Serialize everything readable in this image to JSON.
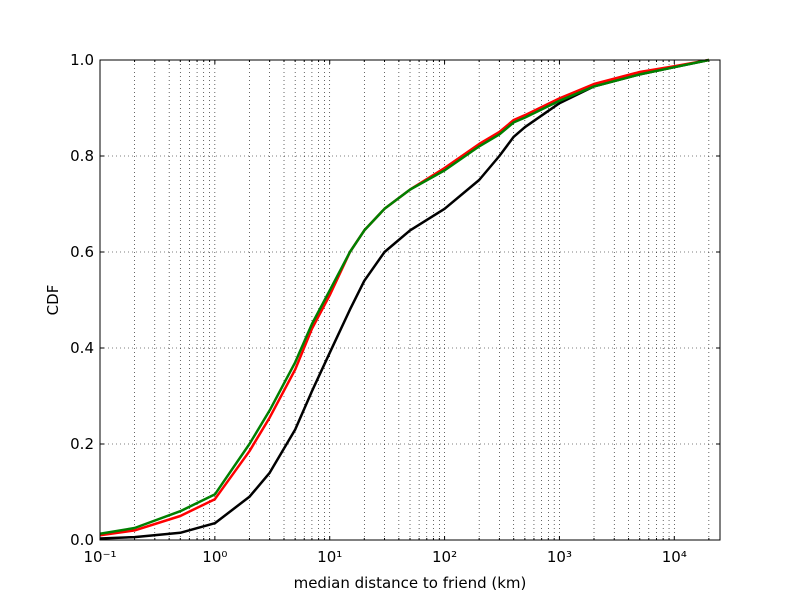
{
  "chart_data": {
    "type": "line",
    "x_label": "median distance to friend (km)",
    "y_label": "CDF",
    "x_scale": "log",
    "grid": true,
    "minor_grid": true,
    "x": [
      0.1,
      0.2,
      0.5,
      1,
      2,
      3,
      5,
      7,
      10,
      15,
      20,
      30,
      50,
      100,
      200,
      300,
      400,
      500,
      1000,
      2000,
      5000,
      10000,
      20000
    ],
    "series": [
      {
        "color": "#000000",
        "values": [
          0.003,
          0.006,
          0.015,
          0.035,
          0.09,
          0.14,
          0.23,
          0.31,
          0.39,
          0.48,
          0.54,
          0.6,
          0.645,
          0.69,
          0.75,
          0.8,
          0.84,
          0.86,
          0.91,
          0.945,
          0.97,
          0.985,
          1.0
        ]
      },
      {
        "color": "#ff0000",
        "values": [
          0.01,
          0.02,
          0.05,
          0.085,
          0.185,
          0.255,
          0.355,
          0.44,
          0.51,
          0.6,
          0.645,
          0.69,
          0.73,
          0.775,
          0.825,
          0.85,
          0.875,
          0.885,
          0.92,
          0.95,
          0.975,
          0.987,
          1.0
        ]
      },
      {
        "color": "#008000",
        "values": [
          0.013,
          0.025,
          0.06,
          0.095,
          0.2,
          0.27,
          0.37,
          0.45,
          0.52,
          0.6,
          0.645,
          0.69,
          0.73,
          0.77,
          0.82,
          0.845,
          0.87,
          0.88,
          0.915,
          0.945,
          0.97,
          0.985,
          1.0
        ]
      }
    ],
    "xlim": [
      0.1,
      25000
    ],
    "xticks": [
      {
        "value": 0.1,
        "label": "10⁻¹"
      },
      {
        "value": 1,
        "label": "10⁰"
      },
      {
        "value": 10,
        "label": "10¹"
      },
      {
        "value": 100,
        "label": "10²"
      },
      {
        "value": 1000,
        "label": "10³"
      },
      {
        "value": 10000,
        "label": "10⁴"
      }
    ],
    "ylim": [
      0,
      1
    ],
    "yticks": [
      {
        "value": 0,
        "label": "0.0"
      },
      0.2,
      0.4,
      0.6,
      0.8,
      {
        "value": 1,
        "label": "1.0"
      }
    ]
  }
}
